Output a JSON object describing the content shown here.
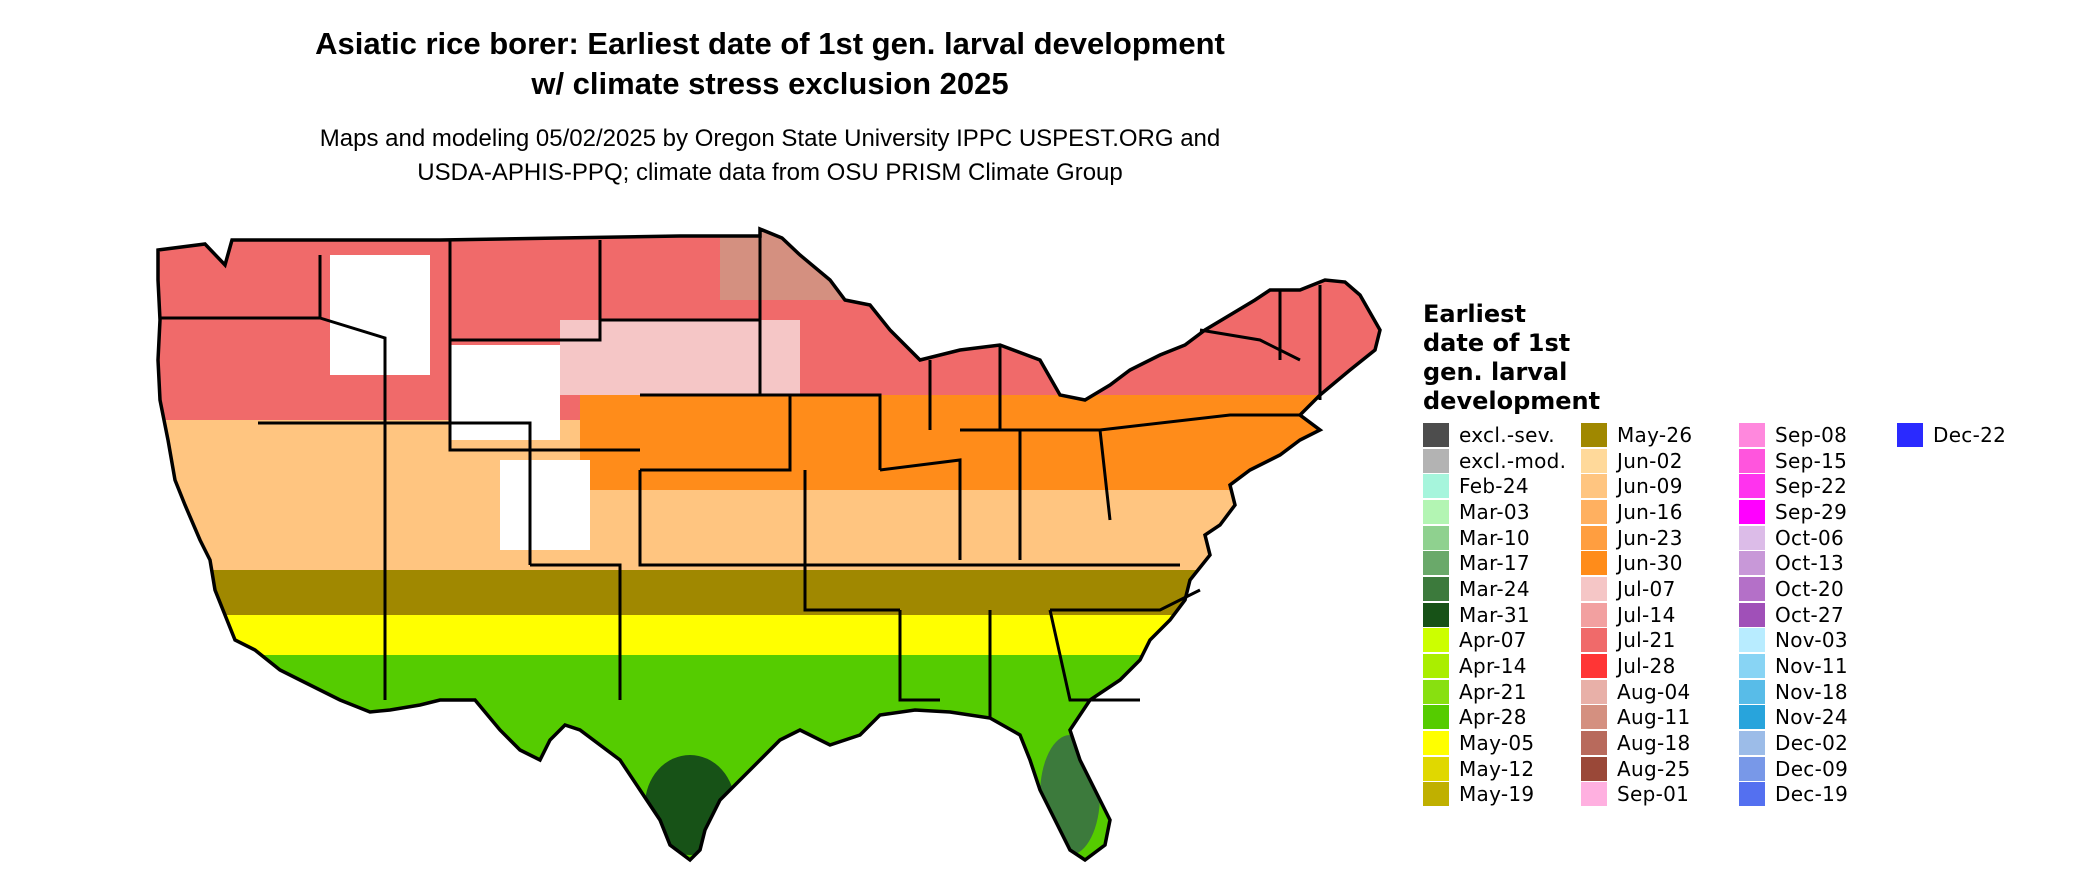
{
  "header": {
    "title_line1": "Asiatic rice borer: Earliest date of 1st gen. larval development",
    "title_line2": "w/ climate stress exclusion 2025",
    "subtitle_line1": "Maps and modeling 05/02/2025 by Oregon State University IPPC USPEST.ORG and",
    "subtitle_line2": "USDA-APHIS-PPQ; climate data from OSU PRISM Climate Group"
  },
  "legend": {
    "title_lines": [
      "Earliest",
      "date of 1st",
      "gen. larval",
      "development"
    ],
    "items": [
      {
        "label": "excl.-sev.",
        "color": "#4d4d4d"
      },
      {
        "label": "excl.-mod.",
        "color": "#b3b3b3"
      },
      {
        "label": "Feb-24",
        "color": "#a6f5dc"
      },
      {
        "label": "Mar-03",
        "color": "#b3f5b3"
      },
      {
        "label": "Mar-10",
        "color": "#8fd18f"
      },
      {
        "label": "Mar-17",
        "color": "#6aa96a"
      },
      {
        "label": "Mar-24",
        "color": "#3c7a3c"
      },
      {
        "label": "Mar-31",
        "color": "#175217"
      },
      {
        "label": "Apr-07",
        "color": "#ccff00"
      },
      {
        "label": "Apr-14",
        "color": "#aaee00"
      },
      {
        "label": "Apr-21",
        "color": "#88e010"
      },
      {
        "label": "Apr-28",
        "color": "#55cc00"
      },
      {
        "label": "May-05",
        "color": "#ffff00"
      },
      {
        "label": "May-12",
        "color": "#e0d800"
      },
      {
        "label": "May-19",
        "color": "#c0b000"
      },
      {
        "label": "May-26",
        "color": "#a08800"
      },
      {
        "label": "Jun-02",
        "color": "#ffd99a"
      },
      {
        "label": "Jun-09",
        "color": "#ffc580"
      },
      {
        "label": "Jun-16",
        "color": "#ffb060"
      },
      {
        "label": "Jun-23",
        "color": "#ff9e40"
      },
      {
        "label": "Jun-30",
        "color": "#ff8c1a"
      },
      {
        "label": "Jul-07",
        "color": "#f5c6c6"
      },
      {
        "label": "Jul-14",
        "color": "#f2a0a0"
      },
      {
        "label": "Jul-21",
        "color": "#f06a6a"
      },
      {
        "label": "Jul-28",
        "color": "#ff3535"
      },
      {
        "label": "Aug-04",
        "color": "#e8b0a8"
      },
      {
        "label": "Aug-11",
        "color": "#d49080"
      },
      {
        "label": "Aug-18",
        "color": "#b86a5c"
      },
      {
        "label": "Aug-25",
        "color": "#9a4838"
      },
      {
        "label": "Sep-01",
        "color": "#ffb0e0"
      },
      {
        "label": "Sep-08",
        "color": "#ff88dd"
      },
      {
        "label": "Sep-15",
        "color": "#ff55dd"
      },
      {
        "label": "Sep-22",
        "color": "#ff33ee"
      },
      {
        "label": "Sep-29",
        "color": "#ff00ff"
      },
      {
        "label": "Oct-06",
        "color": "#dcbce8"
      },
      {
        "label": "Oct-13",
        "color": "#c898d8"
      },
      {
        "label": "Oct-20",
        "color": "#b470c8"
      },
      {
        "label": "Oct-27",
        "color": "#a050b8"
      },
      {
        "label": "Nov-03",
        "color": "#b8ecff"
      },
      {
        "label": "Nov-11",
        "color": "#88d4f4"
      },
      {
        "label": "Nov-18",
        "color": "#58bce8"
      },
      {
        "label": "Nov-24",
        "color": "#28a4dc"
      },
      {
        "label": "Dec-02",
        "color": "#9cbce8"
      },
      {
        "label": "Dec-09",
        "color": "#7898e8"
      },
      {
        "label": "Dec-19",
        "color": "#5470f0"
      },
      {
        "label": "Dec-22",
        "color": "#2a2aff"
      }
    ]
  },
  "map": {
    "region_colors": {
      "north": "#f06a6a",
      "north_light": "#f5c6c6",
      "upper_midwest_brown": "#d49080",
      "unsuitable": "#ffffff",
      "central_orange": "#ff8c1a",
      "central_light_orange": "#ffc580",
      "southern_olive": "#a08800",
      "south_yellow": "#ffff00",
      "gulf_green": "#55cc00",
      "florida_dark_green": "#3c7a3c",
      "texas_dark_green": "#175217",
      "boundary": "#000000"
    }
  }
}
